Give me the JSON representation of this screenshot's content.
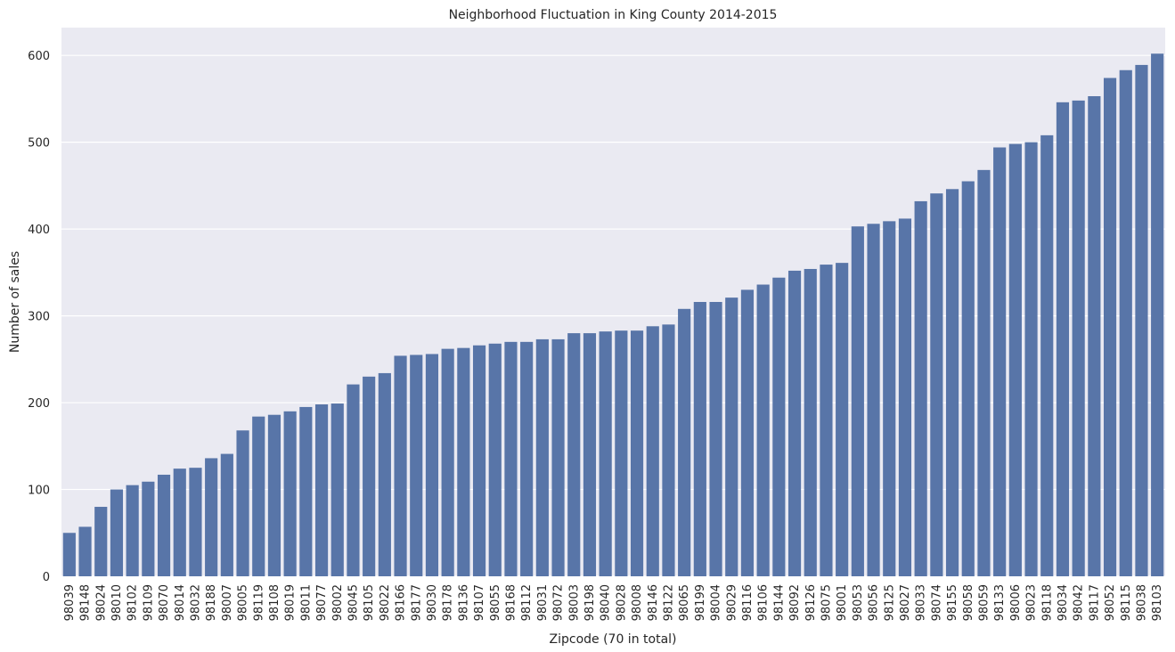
{
  "chart_data": {
    "type": "bar",
    "title": "Neighborhood Fluctuation in King County 2014-2015",
    "xlabel": "Zipcode (70 in total)",
    "ylabel": "Number of sales",
    "ylim": [
      0,
      632
    ],
    "yticks": [
      0,
      100,
      200,
      300,
      400,
      500,
      600
    ],
    "grid": true,
    "colors": {
      "bar": "#5875a8",
      "background": "#eaeaf2",
      "grid": "#ffffff"
    },
    "categories": [
      "98039",
      "98148",
      "98024",
      "98010",
      "98102",
      "98109",
      "98070",
      "98014",
      "98032",
      "98188",
      "98007",
      "98005",
      "98119",
      "98108",
      "98019",
      "98011",
      "98077",
      "98002",
      "98045",
      "98105",
      "98022",
      "98166",
      "98177",
      "98030",
      "98178",
      "98136",
      "98107",
      "98055",
      "98168",
      "98112",
      "98031",
      "98072",
      "98003",
      "98198",
      "98040",
      "98028",
      "98008",
      "98146",
      "98122",
      "98065",
      "98199",
      "98004",
      "98029",
      "98116",
      "98106",
      "98144",
      "98092",
      "98126",
      "98075",
      "98001",
      "98053",
      "98056",
      "98125",
      "98027",
      "98033",
      "98074",
      "98155",
      "98058",
      "98059",
      "98133",
      "98006",
      "98023",
      "98118",
      "98034",
      "98042",
      "98117",
      "98052",
      "98115",
      "98038",
      "98103"
    ],
    "values": [
      50,
      57,
      80,
      100,
      105,
      109,
      117,
      124,
      125,
      136,
      141,
      168,
      184,
      186,
      190,
      195,
      198,
      199,
      221,
      230,
      234,
      254,
      255,
      256,
      262,
      263,
      266,
      268,
      270,
      270,
      273,
      273,
      280,
      280,
      282,
      283,
      283,
      288,
      290,
      308,
      316,
      316,
      321,
      330,
      336,
      344,
      352,
      354,
      359,
      361,
      403,
      406,
      409,
      412,
      432,
      441,
      446,
      455,
      468,
      494,
      498,
      500,
      508,
      546,
      548,
      553,
      574,
      583,
      589,
      602
    ]
  }
}
